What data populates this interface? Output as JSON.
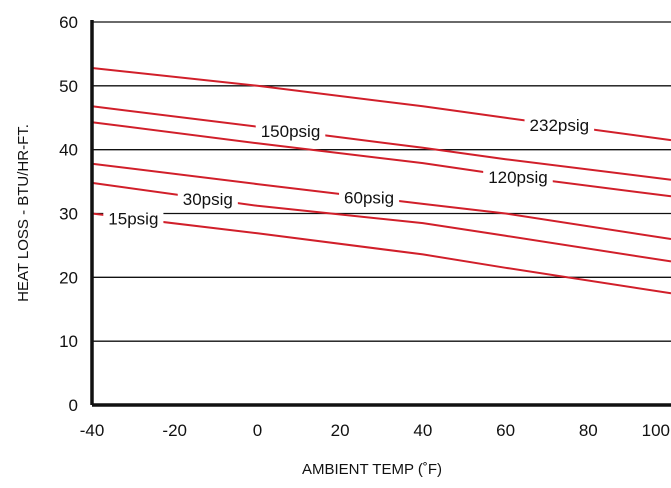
{
  "chart_data": {
    "type": "line",
    "title": "",
    "xlabel": "AMBIENT TEMP (˚F)",
    "ylabel": "HEAT LOSS - BTU/HR-FT.",
    "xlim": [
      -40,
      100
    ],
    "ylim": [
      0,
      60
    ],
    "xticks": [
      -40,
      -20,
      0,
      20,
      40,
      60,
      80,
      100
    ],
    "yticks": [
      0,
      10,
      20,
      30,
      40,
      50,
      60
    ],
    "horizontal_grid": true,
    "vertical_grid": false,
    "line_color": "#d11f2a",
    "series": [
      {
        "name": "232psig",
        "x": [
          -40,
          0,
          40,
          60,
          100
        ],
        "y": [
          52.8,
          50.0,
          46.8,
          45.0,
          41.5
        ],
        "label_x": 73
      },
      {
        "name": "150psig",
        "x": [
          -40,
          0,
          40,
          60,
          100
        ],
        "y": [
          46.8,
          43.6,
          40.3,
          38.5,
          35.3
        ],
        "label_x": 8
      },
      {
        "name": "120psig",
        "x": [
          -40,
          0,
          40,
          60,
          100
        ],
        "y": [
          44.3,
          41.0,
          37.9,
          36.0,
          32.7
        ],
        "label_x": 63
      },
      {
        "name": "60psig",
        "x": [
          -40,
          0,
          40,
          60,
          100
        ],
        "y": [
          37.8,
          34.6,
          31.5,
          30.0,
          26.0
        ],
        "label_x": 27
      },
      {
        "name": "30psig",
        "x": [
          -40,
          0,
          40,
          60,
          100
        ],
        "y": [
          34.8,
          31.2,
          28.5,
          26.5,
          22.5
        ],
        "label_x": -12
      },
      {
        "name": "15psig",
        "x": [
          -40,
          0,
          40,
          60,
          100
        ],
        "y": [
          30.0,
          26.9,
          23.6,
          21.5,
          17.5
        ],
        "label_x": -30
      }
    ]
  }
}
